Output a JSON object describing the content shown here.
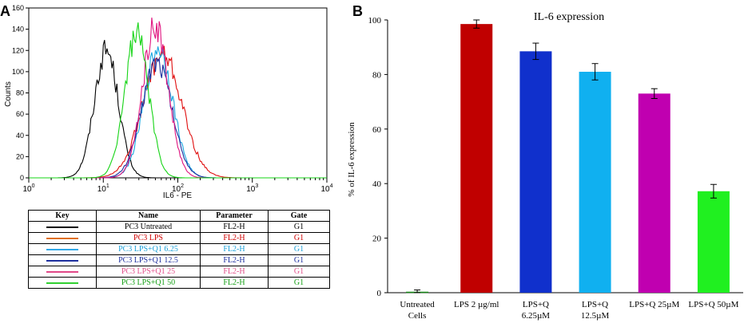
{
  "panel_labels": {
    "a": "A",
    "b": "B"
  },
  "chart_data": [
    {
      "type": "line",
      "title": "",
      "xlabel": "IL6 - PE",
      "ylabel": "Counts",
      "xscale": "log",
      "xlim": [
        1,
        10000
      ],
      "ylim": [
        0,
        160
      ],
      "x_tick_labels": [
        {
          "base": "10",
          "exp": "0"
        },
        {
          "base": "10",
          "exp": "1"
        },
        {
          "base": "10",
          "exp": "2"
        },
        {
          "base": "10",
          "exp": "3"
        },
        {
          "base": "10",
          "exp": "4"
        }
      ],
      "y_ticks": [
        0,
        20,
        40,
        60,
        80,
        100,
        120,
        140,
        160
      ],
      "y_tick_labels": [
        "0",
        "20",
        "40",
        "60",
        "80",
        "100",
        "120",
        "140",
        "160"
      ],
      "series": [
        {
          "name": "PC3 Untreated",
          "color": "#000000",
          "peak_x": 11,
          "peak_y": 123,
          "spread": 0.16
        },
        {
          "name": "PC3 LPS",
          "color": "#e01010",
          "peak_x": 62,
          "peak_y": 118,
          "spread": 0.26
        },
        {
          "name": "PC3 LPS+Q1 6.25",
          "color": "#1aa7e0",
          "peak_x": 55,
          "peak_y": 125,
          "spread": 0.19
        },
        {
          "name": "PC3 LPS+Q1 12.5",
          "color": "#1d2f9e",
          "peak_x": 52,
          "peak_y": 112,
          "spread": 0.2
        },
        {
          "name": "PC3 LPS+Q1 25",
          "color": "#e0147f",
          "peak_x": 50,
          "peak_y": 148,
          "spread": 0.17
        },
        {
          "name": "PC3 LPS+Q1 50",
          "color": "#16d416",
          "peak_x": 28,
          "peak_y": 138,
          "spread": 0.16
        }
      ],
      "legend_table": {
        "headers": [
          "Key",
          "Name",
          "Parameter",
          "Gate"
        ],
        "rows": [
          {
            "name": "PC3 Untreated",
            "parameter": "FL2-H",
            "gate": "G1",
            "line_color": "#000000",
            "text_color": "#000000"
          },
          {
            "name": "PC3 LPS",
            "parameter": "FL2-H",
            "gate": "G1",
            "line_color": "#e07020",
            "text_color": "#d00000"
          },
          {
            "name": "PC3 LPS+Q1 6.25",
            "parameter": "FL2-H",
            "gate": "G1",
            "line_color": "#30a8e8",
            "text_color": "#1a9fd8"
          },
          {
            "name": "PC3 LPS+Q1 12.5",
            "parameter": "FL2-H",
            "gate": "G1",
            "line_color": "#1d2f9e",
            "text_color": "#1d2f9e"
          },
          {
            "name": "PC3 LPS+Q1 25",
            "parameter": "FL2-H",
            "gate": "G1",
            "line_color": "#e04888",
            "text_color": "#e0508a"
          },
          {
            "name": "PC3 LPS+Q1 50",
            "parameter": "FL2-H",
            "gate": "G1",
            "line_color": "#30d030",
            "text_color": "#16a016"
          }
        ]
      }
    },
    {
      "type": "bar",
      "title": "IL-6 expression",
      "xlabel": "",
      "ylabel": "% of IL-6 expression",
      "ylim": [
        0,
        100
      ],
      "y_ticks": [
        0,
        20,
        40,
        60,
        80,
        100
      ],
      "y_tick_labels": [
        "0",
        "20",
        "40",
        "60",
        "80",
        "100"
      ],
      "categories": [
        [
          "Untreated",
          "Cells"
        ],
        [
          "LPS 2 µg/ml"
        ],
        [
          "LPS+Q",
          "6.25µM"
        ],
        [
          "LPS+Q",
          "12.5µM"
        ],
        [
          "LPS+Q 25µM"
        ],
        [
          "LPS+Q 50µM"
        ]
      ],
      "values": [
        0,
        98.5,
        88.5,
        81,
        73,
        37.2
      ],
      "errors": [
        1,
        1.5,
        3,
        3,
        1.8,
        2.5
      ],
      "colors": [
        "#1a8a1a",
        "#c00000",
        "#1030cc",
        "#10b0f0",
        "#c000b0",
        "#20f020"
      ]
    }
  ]
}
